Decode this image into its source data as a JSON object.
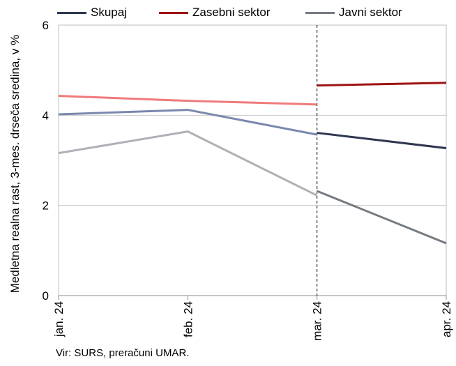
{
  "chart_data": {
    "type": "line",
    "title": "",
    "ylabel": "Medletna realna rast, 3-mes. drseča sredina, v %",
    "xlabel": "",
    "categories": [
      "jan. 24",
      "feb. 24",
      "mar. 24",
      "apr. 24"
    ],
    "ylim": [
      0,
      6
    ],
    "yticks": [
      "0",
      "2",
      "4",
      "6"
    ],
    "grid": true,
    "legend_position": "top",
    "divider_after": "mar. 24",
    "series": [
      {
        "name": "Skupaj",
        "color": "#2e3650",
        "faded_color": "#7a88ad",
        "values": [
          4.02,
          4.12,
          3.57,
          null
        ],
        "values_right": [
          3.61,
          3.27
        ]
      },
      {
        "name": "Zasebni sektor",
        "color": "#9e1212",
        "faded_color": "#ef7a7a",
        "values": [
          4.43,
          4.32,
          4.24,
          null
        ],
        "values_right": [
          4.66,
          4.72
        ]
      },
      {
        "name": "Javni sektor",
        "color": "#757b82",
        "faded_color": "#aeb1b5",
        "values": [
          3.16,
          3.64,
          2.22,
          null
        ],
        "values_right": [
          2.32,
          1.16
        ]
      }
    ]
  },
  "source": "Vir: SURS, preračuni UMAR."
}
